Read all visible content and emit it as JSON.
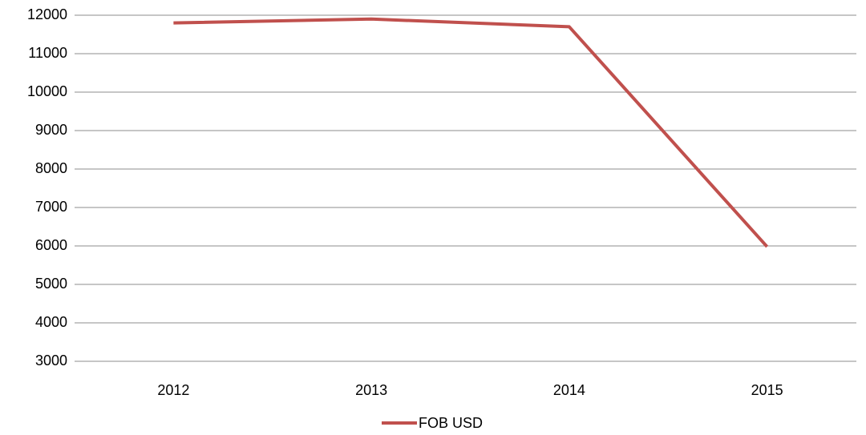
{
  "chart_data": {
    "type": "line",
    "categories": [
      "2012",
      "2013",
      "2014",
      "2015"
    ],
    "series": [
      {
        "name": "FOB USD",
        "color": "#c0504d",
        "values": [
          11800,
          11900,
          11700,
          5980
        ]
      }
    ],
    "ylim": [
      3000,
      12000
    ],
    "yticks": [
      3000,
      4000,
      5000,
      6000,
      7000,
      8000,
      9000,
      10000,
      11000,
      12000
    ],
    "grid": true,
    "legend": "bottom"
  }
}
